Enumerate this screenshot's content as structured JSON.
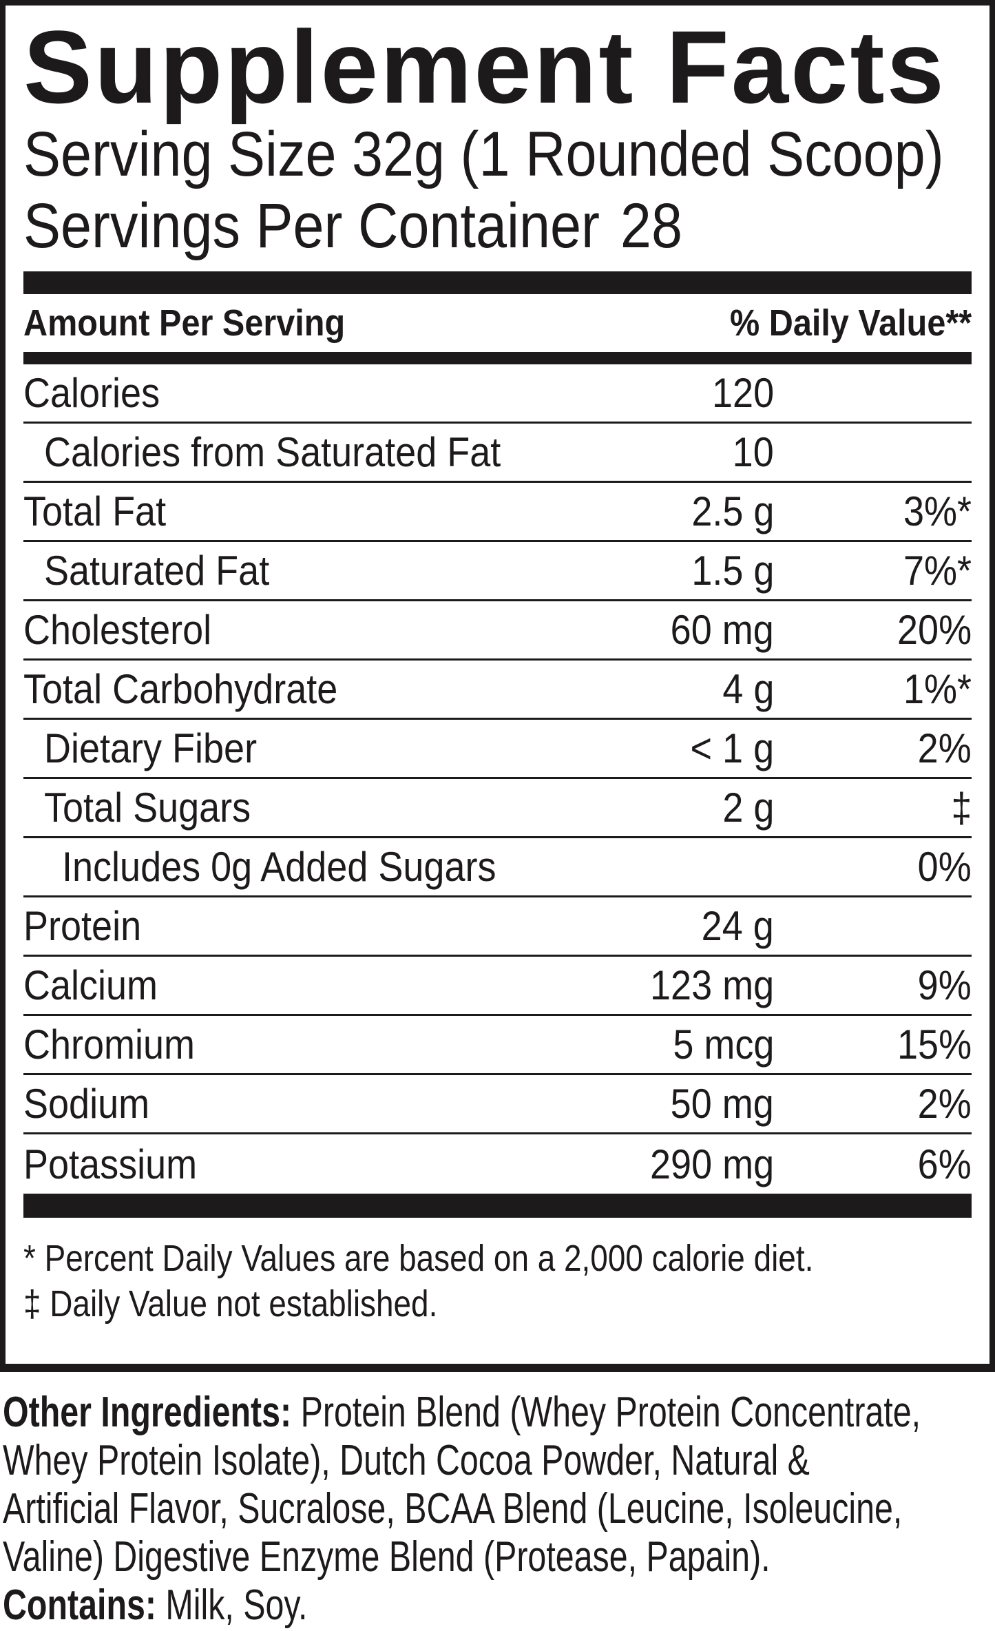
{
  "title": "Supplement Facts",
  "serving": {
    "size_line": "Serving Size 32g (1 Rounded Scoop)",
    "per_container_label": "Servings Per Container",
    "per_container_value": "28"
  },
  "table": {
    "header": {
      "amount_heading": "Amount Per Serving",
      "dv_heading": "% Daily Value**"
    },
    "rows": [
      {
        "label": "Calories",
        "amount": "120",
        "dv": ""
      },
      {
        "label": "Calories from Saturated Fat",
        "amount": "10",
        "dv": ""
      },
      {
        "label": "Total Fat",
        "amount": "2.5 g",
        "dv": "3%*"
      },
      {
        "label": "Saturated Fat",
        "amount": "1.5 g",
        "dv": "7%*"
      },
      {
        "label": "Cholesterol",
        "amount": "60 mg",
        "dv": "20%"
      },
      {
        "label": "Total Carbohydrate",
        "amount": "4 g",
        "dv": "1%*"
      },
      {
        "label": "Dietary Fiber",
        "amount": "< 1 g",
        "dv": "2%"
      },
      {
        "label": "Total Sugars",
        "amount": "2 g",
        "dv": "‡"
      },
      {
        "label": "Includes 0g Added Sugars",
        "amount": "",
        "dv": "0%"
      },
      {
        "label": "Protein",
        "amount": "24 g",
        "dv": ""
      },
      {
        "label": "Calcium",
        "amount": "123 mg",
        "dv": "9%"
      },
      {
        "label": "Chromium",
        "amount": "5 mcg",
        "dv": "15%"
      },
      {
        "label": "Sodium",
        "amount": "50 mg",
        "dv": "2%"
      },
      {
        "label": "Potassium",
        "amount": "290 mg",
        "dv": "6%"
      }
    ]
  },
  "footnotes": {
    "percent_note": "* Percent Daily Values are based on a 2,000 calorie diet.",
    "dagger_note": "‡ Daily Value not established."
  },
  "other_ingredients": {
    "lines": [
      {
        "bold": "Other Ingredients:",
        "rest": " Protein Blend (Whey Protein Concentrate,"
      },
      {
        "bold": "",
        "rest": "Whey Protein Isolate), Dutch Cocoa Powder, Natural &"
      },
      {
        "bold": "",
        "rest": "Artificial Flavor, Sucralose, BCAA Blend (Leucine, Isoleucine,"
      },
      {
        "bold": "",
        "rest": "Valine) Digestive Enzyme Blend (Protease, Papain)."
      },
      {
        "bold": "Contains:",
        "rest": " Milk, Soy."
      }
    ]
  },
  "colors": {
    "ink": "#1d1a1b",
    "background": "#ffffff"
  }
}
